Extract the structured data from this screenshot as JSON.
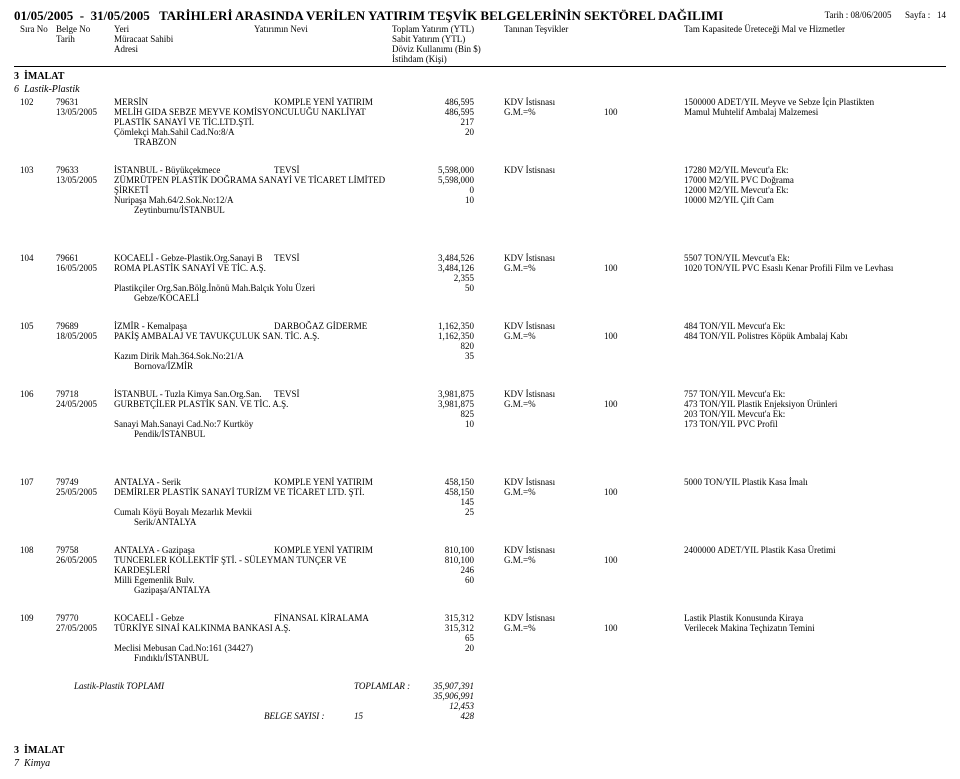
{
  "header": {
    "date_from": "01/05/2005",
    "date_to": "31/05/2005",
    "title": "TARİHLERİ ARASINDA VERİLEN YATIRIM TEŞVİK BELGELERİNİN SEKTÖREL DAĞILIMI",
    "print_date_label": "Tarih :",
    "print_date": "08/06/2005",
    "page_label": "Sayfa :",
    "page_num": "14"
  },
  "cols": {
    "sira_no": "Sıra No",
    "belge_no": "Belge No",
    "tarih": "Tarih",
    "yeri": "Yeri",
    "muracaat": "Müracaat Sahibi",
    "adresi": "Adresi",
    "yatirimin_nevi": "Yatırımın Nevi",
    "toplam_yatirim": "Toplam Yatırım (YTL)",
    "sabit_yatirim": "Sabit Yatırım (YTL)",
    "doviz": "Döviz Kullanımı (Bin $)",
    "istihdam": "İstihdam (Kişi)",
    "taninan": "Tanınan Teşvikler",
    "tam_kap": "Tam Kapasitede Üreteceği Mal ve Hizmetler"
  },
  "section3": {
    "num": "3",
    "name": "İMALAT"
  },
  "sub6": {
    "num": "6",
    "name": "Lastik-Plastik"
  },
  "rows": [
    {
      "sira": "102",
      "belge": "79631",
      "tarih": "13/05/2005",
      "yer": "MERSİN",
      "nev": "KOMPLE YENİ YATIRIM",
      "firma": "MELİH GIDA SEBZE MEYVE KOMİSYONCULUĞU NAKLİYAT PLASTİK SANAYİ VE TİC.LTD.ŞTİ.",
      "adres1": "Çömlekçi Mah.Sahil Cad.No:8/A",
      "adres2": "TRABZON",
      "n1": "486,595",
      "n2": "486,595",
      "n3": "217",
      "n4": "20",
      "t1": "KDV İstisnası",
      "t2": "G.M.=%",
      "t2b": "100",
      "h1": "1500000 ADET/YIL Meyve ve Sebze İçin Plastikten",
      "h2": "Mamul Muhtelif Ambalaj Malzemesi"
    },
    {
      "sira": "103",
      "belge": "79633",
      "tarih": "13/05/2005",
      "yer": "İSTANBUL - Büyükçekmece",
      "nev": "TEVSİ",
      "firma": "ZÜMRÜTPEN PLASTİK DOĞRAMA SANAYİ VE TİCARET LİMİTED ŞİRKETİ",
      "adres1": "Nuripaşa Mah.64/2.Sok.No:12/A",
      "adres2": "Zeytinburnu/İSTANBUL",
      "n1": "5,598,000",
      "n2": "5,598,000",
      "n3": "0",
      "n4": "10",
      "t1": "KDV İstisnası",
      "t2": "",
      "t2b": "",
      "h1": "17280 M2/YIL Mevcut'a Ek:",
      "h2": "17000 M2/YIL PVC Doğrama",
      "h3": "12000 M2/YIL Mevcut'a Ek:",
      "h4": "10000 M2/YIL Çift Cam"
    },
    {
      "sira": "104",
      "belge": "79661",
      "tarih": "16/05/2005",
      "yer": "KOCAELİ - Gebze-Plastik.Org.Sanayi B",
      "nev": "TEVSİ",
      "firma": "ROMA PLASTİK SANAYİ VE TİC. A.Ş.",
      "adres1": "Plastikçiler Org.San.Bölg.İnönü Mah.Balçık Yolu Üzeri",
      "adres2": "Gebze/KOCAELİ",
      "n1": "3,484,526",
      "n2": "3,484,126",
      "n3": "2,355",
      "n4": "50",
      "t1": "KDV İstisnası",
      "t2": "G.M.=%",
      "t2b": "100",
      "h1": "5507 TON/YIL Mevcut'a Ek:",
      "h2": "1020 TON/YIL PVC Esaslı Kenar Profili Film ve Levhası"
    },
    {
      "sira": "105",
      "belge": "79689",
      "tarih": "18/05/2005",
      "yer": "İZMİR - Kemalpaşa",
      "nev": "DARBOĞAZ GİDERME",
      "firma": "PAKİŞ AMBALAJ VE TAVUKÇULUK SAN. TİC. A.Ş.",
      "adres1": "Kazım Dirik Mah.364.Sok.No:21/A",
      "adres2": "Bornova/İZMİR",
      "n1": "1,162,350",
      "n2": "1,162,350",
      "n3": "820",
      "n4": "35",
      "t1": "KDV İstisnası",
      "t2": "G.M.=%",
      "t2b": "100",
      "h1": "484 TON/YIL Mevcut'a Ek:",
      "h2": "484 TON/YIL Polistres Köpük Ambalaj Kabı"
    },
    {
      "sira": "106",
      "belge": "79718",
      "tarih": "24/05/2005",
      "yer": "İSTANBUL - Tuzla Kimya San.Org.San.",
      "nev": "TEVSİ",
      "firma": "GURBETÇİLER PLASTİK SAN. VE TİC. A.Ş.",
      "adres1": "Sanayi Mah.Sanayi Cad.No:7 Kurtköy",
      "adres2": "Pendik/İSTANBUL",
      "n1": "3,981,875",
      "n2": "3,981,875",
      "n3": "825",
      "n4": "10",
      "t1": "KDV İstisnası",
      "t2": "G.M.=%",
      "t2b": "100",
      "h1": "757 TON/YIL Mevcut'a Ek:",
      "h2": "473 TON/YIL Plastik Enjeksiyon Ürünleri",
      "h3": "203 TON/YIL Mevcut'a Ek:",
      "h4": "173 TON/YIL PVC Profil"
    },
    {
      "sira": "107",
      "belge": "79749",
      "tarih": "25/05/2005",
      "yer": "ANTALYA - Serik",
      "nev": "KOMPLE YENİ YATIRIM",
      "firma": "DEMİRLER PLASTİK SANAYİ TURİZM VE TİCARET LTD. ŞTİ.",
      "adres1": "Cumalı Köyü Boyalı Mezarlık Mevkii",
      "adres2": "Serik/ANTALYA",
      "n1": "458,150",
      "n2": "458,150",
      "n3": "145",
      "n4": "25",
      "t1": "KDV İstisnası",
      "t2": "G.M.=%",
      "t2b": "100",
      "h1": "5000 TON/YIL Plastik Kasa İmalı"
    },
    {
      "sira": "108",
      "belge": "79758",
      "tarih": "26/05/2005",
      "yer": "ANTALYA - Gazipaşa",
      "nev": "KOMPLE YENİ YATIRIM",
      "firma": "TUNCERLER KOLLEKTİF ŞTİ. - SÜLEYMAN TUNÇER VE KARDEŞLERİ",
      "adres1": "Milli Egemenlik Bulv.",
      "adres2": "Gazipaşa/ANTALYA",
      "n1": "810,100",
      "n2": "810,100",
      "n3": "246",
      "n4": "60",
      "t1": "KDV İstisnası",
      "t2": "G.M.=%",
      "t2b": "100",
      "h1": "2400000 ADET/YIL Plastik Kasa Üretimi"
    },
    {
      "sira": "109",
      "belge": "79770",
      "tarih": "27/05/2005",
      "yer": "KOCAELİ - Gebze",
      "nev": "FİNANSAL KİRALAMA",
      "firma": "TÜRKİYE SINAİ KALKINMA BANKASI A.Ş.",
      "adres1": "Meclisi Mebusan Cad.No:161 (34427)",
      "adres2": "Fındıklı/İSTANBUL",
      "n1": "315,312",
      "n2": "315,312",
      "n3": "65",
      "n4": "20",
      "t1": "KDV İstisnası",
      "t2": "G.M.=%",
      "t2b": "100",
      "h1": "Lastik Plastik Konusunda Kiraya",
      "h2": "Verilecek Makina Teçhizatın Temini"
    }
  ],
  "totals": {
    "label": "Lastik-Plastik TOPLAMI",
    "toplamlar": "TOPLAMLAR :",
    "v1": "35,907,391",
    "v2": "35,906,991",
    "v3": "12,453",
    "v4": "428",
    "belge_sayisi_label": "BELGE SAYISI :",
    "belge_sayisi": "15"
  },
  "section3b": {
    "num": "3",
    "name": "İMALAT"
  },
  "sub7": {
    "num": "7",
    "name": "Kimya"
  }
}
